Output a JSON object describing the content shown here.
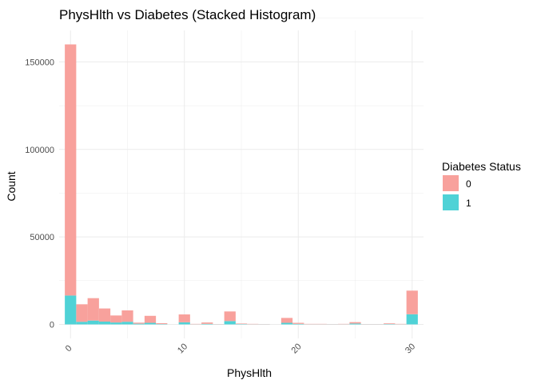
{
  "chart_data": {
    "type": "bar",
    "stacked": true,
    "title": "PhysHlth vs Diabetes (Stacked Histogram)",
    "xlabel": "PhysHlth",
    "ylabel": "Count",
    "xlim": [
      -1,
      31
    ],
    "ylim": [
      -8000,
      168000
    ],
    "x_ticks": [
      0,
      10,
      20,
      30
    ],
    "x_tick_labels": [
      "0",
      "10",
      "20",
      "30"
    ],
    "y_ticks": [
      0,
      50000,
      100000,
      150000
    ],
    "y_tick_labels": [
      "0",
      "50000",
      "100000",
      "150000"
    ],
    "grid": true,
    "legend": {
      "title": "Diabetes Status",
      "position": "right"
    },
    "colors": {
      "0": "#f8a19c",
      "1": "#4fd2d6",
      "grid": "#ebebeb"
    },
    "bin_width": 1,
    "x": [
      0,
      1,
      2,
      3,
      4,
      5,
      6,
      7,
      8,
      9,
      10,
      11,
      12,
      13,
      14,
      15,
      16,
      17,
      18,
      19,
      20,
      21,
      22,
      23,
      24,
      25,
      26,
      27,
      28,
      29,
      30
    ],
    "series": [
      {
        "name": "0",
        "values": [
          143500,
          10000,
          12800,
          7500,
          4000,
          6500,
          600,
          4000,
          500,
          0,
          4500,
          200,
          800,
          100,
          5500,
          300,
          200,
          100,
          0,
          2800,
          600,
          200,
          200,
          100,
          200,
          800,
          100,
          100,
          400,
          200,
          13500
        ]
      },
      {
        "name": "1",
        "values": [
          16500,
          1500,
          2200,
          1600,
          1100,
          1500,
          400,
          900,
          200,
          0,
          1200,
          100,
          300,
          100,
          1900,
          200,
          100,
          100,
          0,
          900,
          300,
          100,
          100,
          100,
          100,
          500,
          100,
          100,
          200,
          100,
          5800
        ]
      }
    ]
  }
}
